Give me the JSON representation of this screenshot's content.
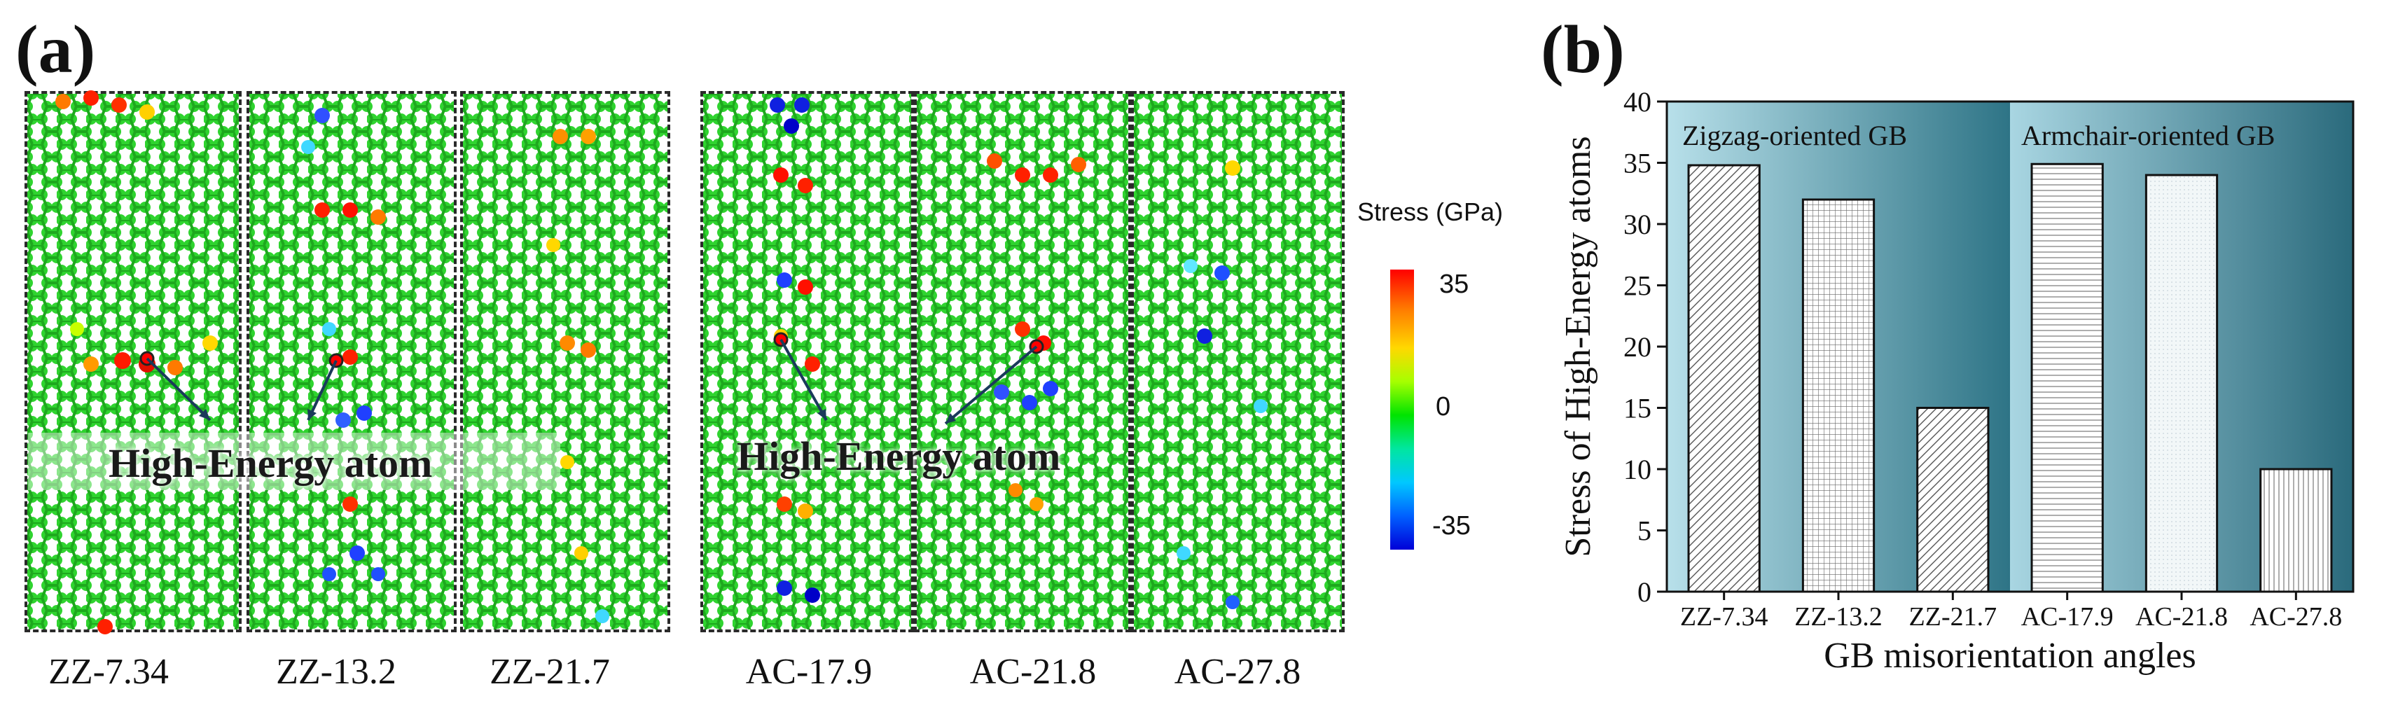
{
  "panel_a": {
    "label": "(a)",
    "snapshots": [
      {
        "label": "ZZ-7.34"
      },
      {
        "label": "ZZ-13.2"
      },
      {
        "label": "ZZ-21.7"
      },
      {
        "label": "AC-17.9"
      },
      {
        "label": "AC-21.8"
      },
      {
        "label": "AC-27.8"
      }
    ],
    "annotation_zz": "High-Energy atom",
    "annotation_ac": "High-Energy atom",
    "colorbar": {
      "title": "Stress (GPa)",
      "max": "35",
      "mid": "0",
      "min": "-35",
      "colors": {
        "high": "#ff0000",
        "zero": "#00e400",
        "low": "#0000d8"
      }
    }
  },
  "panel_b": {
    "label": "(b)",
    "region_zigzag": "Zigzag-oriented GB",
    "region_armchair": "Armchair-oriented GB",
    "colors": {
      "region_light": "#a9d6e2",
      "region_dark": "#2e7486",
      "bar_fill": "#ffffff"
    }
  },
  "chart_data": {
    "type": "bar",
    "categories": [
      "ZZ-7.34",
      "ZZ-13.2",
      "ZZ-21.7",
      "AC-17.9",
      "AC-21.8",
      "AC-27.8"
    ],
    "values": [
      34.8,
      32,
      15,
      34.9,
      34,
      10
    ],
    "patterns": [
      "diagonal-hatch",
      "grid",
      "diagonal-hatch",
      "horizontal-lines",
      "fine-dots",
      "vertical-lines"
    ],
    "title": "",
    "xlabel": "GB misorientation angles",
    "ylabel": "Stress of High-Energy atoms",
    "ylim": [
      0,
      40
    ],
    "yticks": [
      0,
      5,
      10,
      15,
      20,
      25,
      30,
      35,
      40
    ],
    "grid": false
  }
}
